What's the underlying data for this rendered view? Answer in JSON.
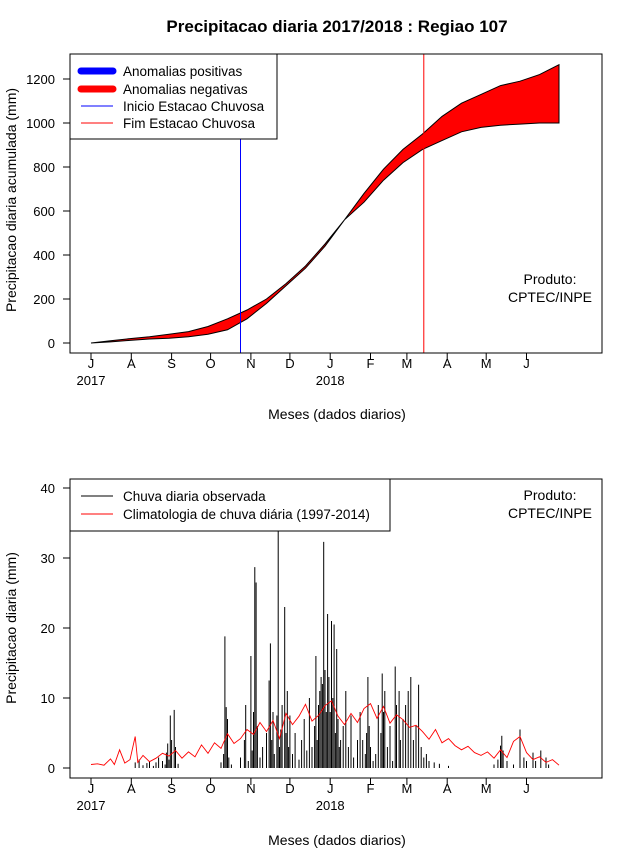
{
  "title": "Precipitacao diaria 2017/2018 : Regiao 107",
  "credit": [
    "Produto:",
    "CPTEC/INPE"
  ],
  "x_axis": {
    "xlabel": "Meses (dados diarios)",
    "month_ticks": [
      "J",
      "A",
      "S",
      "O",
      "N",
      "D",
      "J",
      "F",
      "M",
      "A",
      "M",
      "J"
    ],
    "year_labels": [
      "2017",
      "2018"
    ]
  },
  "chart_data": [
    {
      "type": "area",
      "name": "accumulated",
      "ylabel": "Precipitacao diaria acumulada (mm)",
      "ylim": [
        0,
        1300
      ],
      "yticks": [
        0,
        200,
        400,
        600,
        800,
        1000,
        1200
      ],
      "xlim_days": [
        0,
        365
      ],
      "observed_cumulative": [
        [
          0,
          0
        ],
        [
          15,
          5
        ],
        [
          30,
          12
        ],
        [
          45,
          18
        ],
        [
          60,
          22
        ],
        [
          75,
          28
        ],
        [
          90,
          40
        ],
        [
          105,
          60
        ],
        [
          120,
          110
        ],
        [
          135,
          180
        ],
        [
          150,
          260
        ],
        [
          165,
          340
        ],
        [
          180,
          440
        ],
        [
          195,
          560
        ],
        [
          210,
          640
        ],
        [
          225,
          740
        ],
        [
          240,
          820
        ],
        [
          255,
          880
        ],
        [
          270,
          920
        ],
        [
          285,
          960
        ],
        [
          300,
          980
        ],
        [
          315,
          990
        ],
        [
          330,
          995
        ],
        [
          345,
          1000
        ],
        [
          360,
          1000
        ]
      ],
      "climatology_cumulative": [
        [
          0,
          0
        ],
        [
          15,
          10
        ],
        [
          30,
          20
        ],
        [
          45,
          28
        ],
        [
          60,
          40
        ],
        [
          75,
          52
        ],
        [
          90,
          75
        ],
        [
          105,
          110
        ],
        [
          120,
          150
        ],
        [
          135,
          200
        ],
        [
          150,
          270
        ],
        [
          165,
          350
        ],
        [
          180,
          450
        ],
        [
          195,
          560
        ],
        [
          210,
          680
        ],
        [
          225,
          790
        ],
        [
          240,
          880
        ],
        [
          255,
          950
        ],
        [
          270,
          1030
        ],
        [
          285,
          1090
        ],
        [
          300,
          1130
        ],
        [
          315,
          1170
        ],
        [
          330,
          1190
        ],
        [
          345,
          1220
        ],
        [
          360,
          1265
        ]
      ],
      "legend": [
        {
          "label": "Anomalias positivas",
          "color": "#0000ff"
        },
        {
          "label": "Anomalias negativas",
          "color": "#ff0000"
        },
        {
          "label": "Inicio Estacao Chuvosa",
          "color": "#0000ff"
        },
        {
          "label": "Fim Estacao Chuvosa",
          "color": "#ff0000"
        }
      ],
      "season_start_day": 115,
      "season_end_day": 256
    },
    {
      "type": "bar",
      "name": "daily",
      "ylabel": "Precipitacao diaria (mm)",
      "ylim": [
        0,
        40
      ],
      "yticks": [
        0,
        10,
        20,
        30,
        40
      ],
      "xlim_days": [
        0,
        365
      ],
      "observed_daily_mm": [
        [
          34,
          0.8
        ],
        [
          37,
          1.2
        ],
        [
          40,
          0.4
        ],
        [
          43,
          0.7
        ],
        [
          45,
          1
        ],
        [
          48,
          0.3
        ],
        [
          50,
          0.8
        ],
        [
          52,
          1.5
        ],
        [
          55,
          1
        ],
        [
          57,
          0.5
        ],
        [
          58,
          2.2
        ],
        [
          59,
          3.5
        ],
        [
          60,
          1.2
        ],
        [
          61,
          7.5
        ],
        [
          62,
          4
        ],
        [
          64,
          8.3
        ],
        [
          65,
          3
        ],
        [
          67,
          0.6
        ],
        [
          100,
          0.8
        ],
        [
          102,
          2
        ],
        [
          103,
          18.8
        ],
        [
          104,
          8.7
        ],
        [
          105,
          7
        ],
        [
          106,
          1.5
        ],
        [
          108,
          0.5
        ],
        [
          115,
          1.5
        ],
        [
          118,
          4
        ],
        [
          119,
          9
        ],
        [
          121,
          1
        ],
        [
          123,
          16
        ],
        [
          124,
          2.5
        ],
        [
          125,
          8
        ],
        [
          126,
          28.7
        ],
        [
          127,
          26.5
        ],
        [
          128,
          6
        ],
        [
          130,
          1.5
        ],
        [
          132,
          3
        ],
        [
          135,
          5
        ],
        [
          137,
          12.5
        ],
        [
          138,
          17.8
        ],
        [
          139,
          4
        ],
        [
          140,
          8
        ],
        [
          141,
          2
        ],
        [
          143,
          7.5
        ],
        [
          144,
          33.8
        ],
        [
          145,
          3
        ],
        [
          146,
          5.5
        ],
        [
          147,
          9
        ],
        [
          149,
          23
        ],
        [
          150,
          5
        ],
        [
          151,
          11
        ],
        [
          152,
          3
        ],
        [
          153,
          7.5
        ],
        [
          155,
          2
        ],
        [
          157,
          5
        ],
        [
          160,
          1.2
        ],
        [
          162,
          4
        ],
        [
          164,
          7
        ],
        [
          166,
          2.5
        ],
        [
          168,
          10
        ],
        [
          170,
          3
        ],
        [
          172,
          6
        ],
        [
          173,
          16
        ],
        [
          174,
          4
        ],
        [
          175,
          9
        ],
        [
          176,
          11
        ],
        [
          177,
          13
        ],
        [
          178,
          12
        ],
        [
          179,
          32.3
        ],
        [
          180,
          14
        ],
        [
          181,
          8
        ],
        [
          182,
          22
        ],
        [
          183,
          13
        ],
        [
          184,
          8
        ],
        [
          185,
          21
        ],
        [
          186,
          10
        ],
        [
          187,
          20.5
        ],
        [
          188,
          5
        ],
        [
          189,
          17
        ],
        [
          190,
          7
        ],
        [
          191,
          3
        ],
        [
          192,
          4
        ],
        [
          194,
          6
        ],
        [
          196,
          11
        ],
        [
          198,
          3
        ],
        [
          200,
          7.5
        ],
        [
          202,
          1.5
        ],
        [
          205,
          4
        ],
        [
          207,
          8
        ],
        [
          209,
          4
        ],
        [
          211,
          2
        ],
        [
          212,
          5
        ],
        [
          213,
          13
        ],
        [
          214,
          6
        ],
        [
          215,
          3
        ],
        [
          217,
          1
        ],
        [
          219,
          2
        ],
        [
          221,
          9
        ],
        [
          223,
          5
        ],
        [
          224,
          13.5
        ],
        [
          225,
          8
        ],
        [
          226,
          11
        ],
        [
          228,
          3
        ],
        [
          230,
          6
        ],
        [
          232,
          1
        ],
        [
          234,
          14.5
        ],
        [
          235,
          9
        ],
        [
          237,
          11
        ],
        [
          238,
          4
        ],
        [
          240,
          7
        ],
        [
          242,
          9
        ],
        [
          244,
          11
        ],
        [
          246,
          13
        ],
        [
          248,
          4
        ],
        [
          250,
          6
        ],
        [
          252,
          11.9
        ],
        [
          254,
          3
        ],
        [
          256,
          1.5
        ],
        [
          258,
          2
        ],
        [
          260,
          1
        ],
        [
          264,
          0.8
        ],
        [
          268,
          0.6
        ],
        [
          275,
          0.3
        ],
        [
          310,
          0.5
        ],
        [
          313,
          1.2
        ],
        [
          315,
          3.2
        ],
        [
          316,
          4.6
        ],
        [
          317,
          2.5
        ],
        [
          320,
          1
        ],
        [
          325,
          0.5
        ],
        [
          330,
          5.5
        ],
        [
          333,
          1.5
        ],
        [
          335,
          1
        ],
        [
          340,
          2.2
        ],
        [
          342,
          1
        ],
        [
          346,
          2.5
        ],
        [
          350,
          1.5
        ],
        [
          352,
          0.5
        ]
      ],
      "climatology_mm": [
        [
          0,
          0.5
        ],
        [
          5,
          0.6
        ],
        [
          10,
          0.4
        ],
        [
          15,
          1.3
        ],
        [
          18,
          0.5
        ],
        [
          22,
          2.6
        ],
        [
          26,
          0.7
        ],
        [
          30,
          1.2
        ],
        [
          34,
          4.5
        ],
        [
          36,
          0.8
        ],
        [
          40,
          1.8
        ],
        [
          45,
          0.9
        ],
        [
          50,
          1.4
        ],
        [
          55,
          2.1
        ],
        [
          60,
          1.7
        ],
        [
          65,
          2.5
        ],
        [
          70,
          1.4
        ],
        [
          75,
          2.3
        ],
        [
          80,
          1.6
        ],
        [
          85,
          3.3
        ],
        [
          90,
          2.1
        ],
        [
          95,
          3.6
        ],
        [
          100,
          2.8
        ],
        [
          105,
          4.9
        ],
        [
          110,
          3.5
        ],
        [
          115,
          4.2
        ],
        [
          120,
          5.5
        ],
        [
          125,
          4.8
        ],
        [
          130,
          6.5
        ],
        [
          135,
          5.2
        ],
        [
          140,
          6.8
        ],
        [
          145,
          4.2
        ],
        [
          150,
          7.8
        ],
        [
          155,
          6.2
        ],
        [
          160,
          7.4
        ],
        [
          165,
          9.1
        ],
        [
          170,
          6.7
        ],
        [
          175,
          7.5
        ],
        [
          180,
          8.9
        ],
        [
          185,
          9.6
        ],
        [
          190,
          7.4
        ],
        [
          195,
          6.2
        ],
        [
          200,
          7.8
        ],
        [
          205,
          6.5
        ],
        [
          210,
          8.5
        ],
        [
          215,
          9.2
        ],
        [
          220,
          7.1
        ],
        [
          225,
          8.8
        ],
        [
          230,
          6.4
        ],
        [
          235,
          7.6
        ],
        [
          240,
          6.9
        ],
        [
          245,
          5.8
        ],
        [
          250,
          6.1
        ],
        [
          255,
          5.2
        ],
        [
          260,
          4.1
        ],
        [
          265,
          5.5
        ],
        [
          270,
          3.6
        ],
        [
          275,
          4.2
        ],
        [
          280,
          3.2
        ],
        [
          285,
          2.6
        ],
        [
          290,
          3.1
        ],
        [
          295,
          2.2
        ],
        [
          300,
          1.8
        ],
        [
          305,
          2.3
        ],
        [
          310,
          1.4
        ],
        [
          315,
          2.6
        ],
        [
          320,
          1.5
        ],
        [
          325,
          3.8
        ],
        [
          330,
          4.5
        ],
        [
          335,
          2.2
        ],
        [
          340,
          1.2
        ],
        [
          345,
          1.6
        ],
        [
          350,
          0.8
        ],
        [
          355,
          1.2
        ],
        [
          360,
          0.4
        ]
      ],
      "legend": [
        {
          "label": "Chuva diaria observada",
          "color": "#000000"
        },
        {
          "label": "Climatologia de chuva diária (1997-2014)",
          "color": "#ff0000"
        }
      ]
    }
  ]
}
